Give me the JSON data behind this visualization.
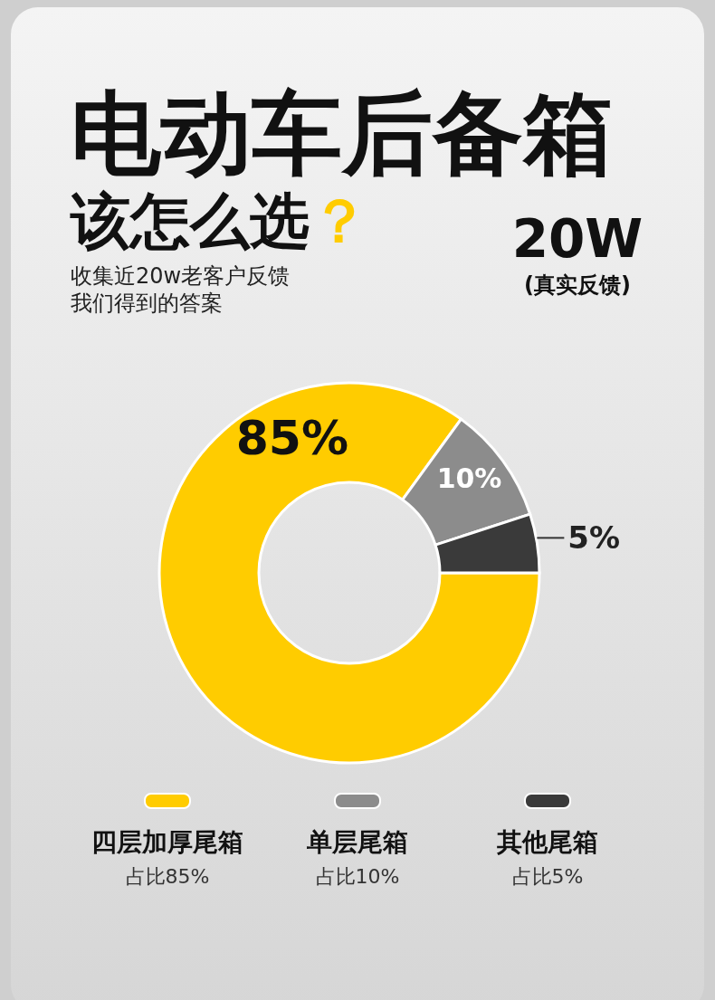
{
  "chart_data": {
    "type": "donut",
    "title": "电动车后备箱",
    "subtitle": "该怎么选？",
    "categories": [
      "四层加厚尾箱",
      "单层尾箱",
      "其他尾箱"
    ],
    "values": [
      85,
      10,
      5
    ],
    "colors": [
      "#ffcc00",
      "#8c8c8c",
      "#3a3a3a"
    ],
    "value_labels": [
      "85%",
      "10%",
      "5%"
    ],
    "legend": "bottom",
    "annotations": [
      "收集近20w老客户反馈",
      "我们得到的答案",
      "20W",
      "(真实反馈)",
      "占比85%",
      "占比10%",
      "占比5%"
    ]
  }
}
